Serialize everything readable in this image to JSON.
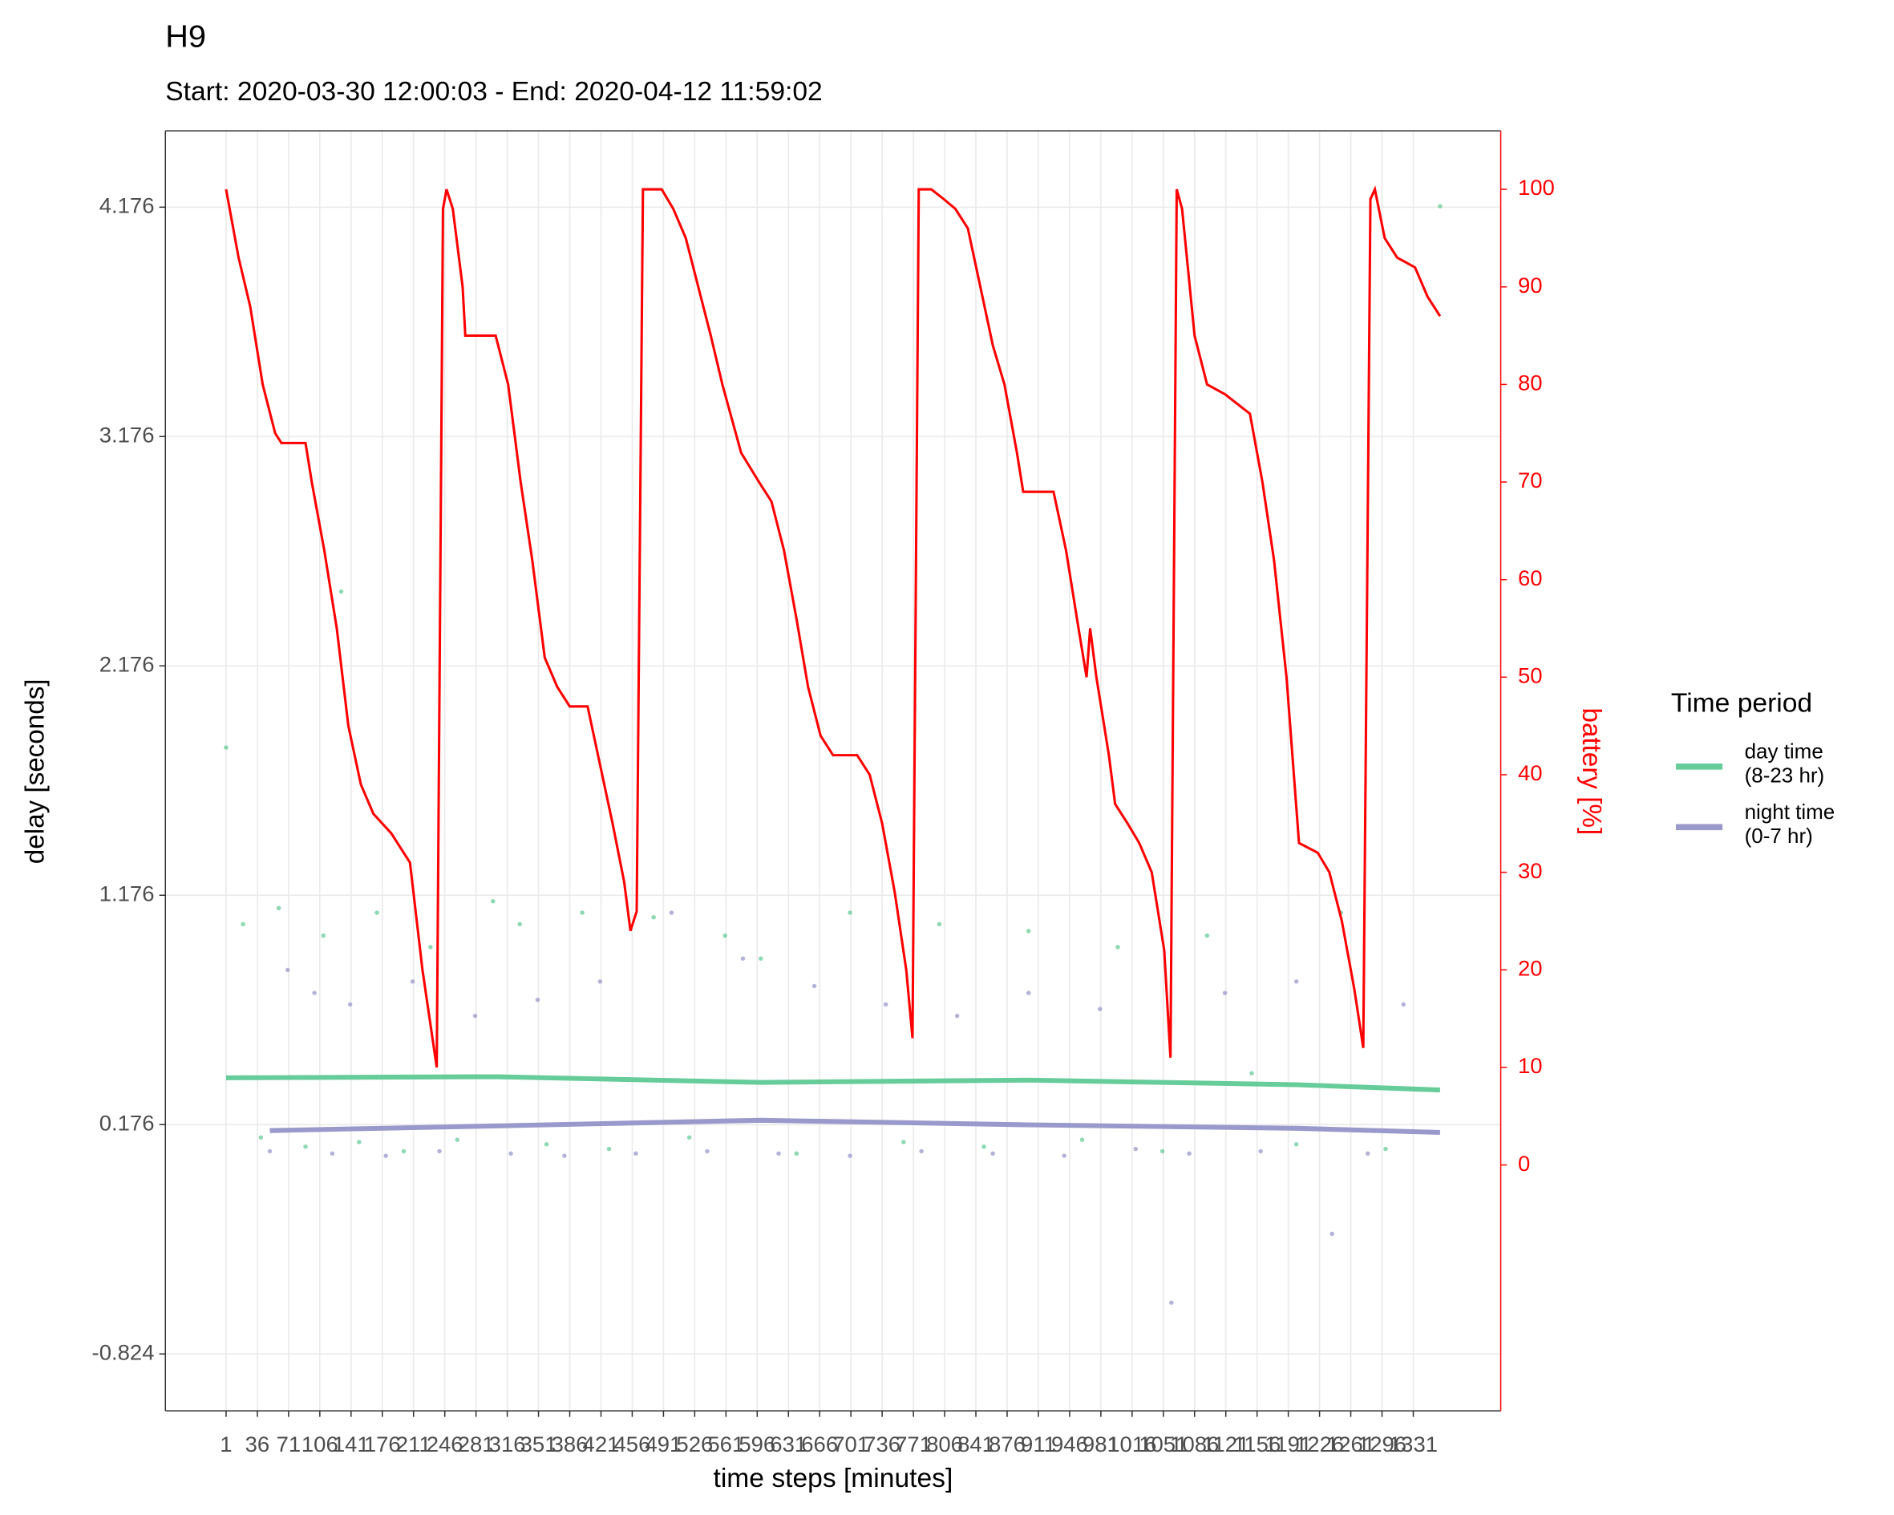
{
  "chart_data": {
    "type": "combo",
    "title": "H9",
    "subtitle": "Start: 2020-03-30 12:00:03 - End: 2020-04-12 11:59:02",
    "x_label": "time steps [minutes]",
    "y_label": "delay [seconds]",
    "y2_label": "battery [%]",
    "legend_title": "Time period",
    "legend_position": "right",
    "grid": true,
    "xlim": [
      -67,
      1429
    ],
    "ylim": [
      -1.072,
      4.509
    ],
    "y2lim": [
      -25.2,
      106
    ],
    "xticks": [
      1,
      36,
      71,
      106,
      141,
      176,
      211,
      246,
      281,
      316,
      351,
      386,
      421,
      456,
      491,
      526,
      561,
      596,
      631,
      666,
      701,
      736,
      771,
      806,
      841,
      876,
      911,
      946,
      981,
      1016,
      1051,
      1086,
      1121,
      1156,
      1191,
      1226,
      1261,
      1296,
      1331
    ],
    "yticks": [
      -0.824,
      0.176,
      1.176,
      2.176,
      3.176,
      4.176
    ],
    "y2ticks": [
      0,
      10,
      20,
      30,
      40,
      50,
      60,
      70,
      80,
      90,
      100
    ],
    "series": [
      {
        "name": "day time\n(8-23 hr)",
        "color": "#66cc99",
        "x": [
          1,
          20,
          40,
          60,
          90,
          110,
          130,
          150,
          170,
          200,
          230,
          260,
          300,
          330,
          360,
          400,
          430,
          480,
          520,
          560,
          600,
          640,
          700,
          760,
          800,
          850,
          900,
          960,
          1000,
          1050,
          1100,
          1150,
          1200,
          1250,
          1300,
          1361
        ],
        "values": [
          1.82,
          1.05,
          0.12,
          1.12,
          0.08,
          1.0,
          2.5,
          0.1,
          1.1,
          0.06,
          0.95,
          0.11,
          1.15,
          1.05,
          0.09,
          1.1,
          0.07,
          1.08,
          0.12,
          1.0,
          0.9,
          0.05,
          1.1,
          0.1,
          1.05,
          0.08,
          1.02,
          0.11,
          0.95,
          0.06,
          1.0,
          0.4,
          0.09,
          1.1,
          0.07,
          4.18
        ],
        "smooth_x": [
          1,
          300,
          600,
          900,
          1200,
          1361
        ],
        "smooth_values": [
          0.38,
          0.385,
          0.36,
          0.37,
          0.35,
          0.327
        ]
      },
      {
        "name": "night time\n(0-7 hr)",
        "color": "#9999cc",
        "x": [
          50,
          70,
          100,
          120,
          140,
          180,
          210,
          240,
          280,
          320,
          350,
          380,
          420,
          460,
          500,
          540,
          580,
          620,
          660,
          700,
          740,
          780,
          820,
          860,
          900,
          940,
          980,
          1020,
          1060,
          1080,
          1120,
          1160,
          1200,
          1240,
          1280,
          1320
        ],
        "values": [
          0.06,
          0.85,
          0.75,
          0.05,
          0.7,
          0.04,
          0.8,
          0.06,
          0.65,
          0.05,
          0.72,
          0.04,
          0.8,
          0.05,
          1.1,
          0.06,
          0.9,
          0.05,
          0.78,
          0.04,
          0.7,
          0.06,
          0.65,
          0.05,
          0.75,
          0.04,
          0.68,
          0.07,
          -0.6,
          0.05,
          0.75,
          0.06,
          0.8,
          -0.3,
          0.05,
          0.7
        ],
        "smooth_x": [
          50,
          300,
          600,
          900,
          1200,
          1361
        ],
        "smooth_values": [
          0.15,
          0.17,
          0.195,
          0.175,
          0.16,
          0.142
        ]
      }
    ],
    "battery": {
      "color": "#ff0000",
      "axis": "y2",
      "x": [
        1,
        15,
        28,
        42,
        56,
        63,
        90,
        97,
        111,
        125,
        138,
        152,
        166,
        186,
        207,
        221,
        237,
        244,
        248,
        255,
        266,
        269,
        303,
        317,
        331,
        344,
        358,
        372,
        386,
        406,
        420,
        434,
        447,
        454,
        461,
        468,
        489,
        502,
        516,
        530,
        544,
        557,
        578,
        598,
        612,
        626,
        640,
        653,
        667,
        681,
        708,
        722,
        736,
        750,
        763,
        770,
        777,
        791,
        805,
        818,
        832,
        846,
        860,
        873,
        887,
        894,
        928,
        942,
        956,
        965,
        969,
        976,
        990,
        997,
        1011,
        1024,
        1038,
        1052,
        1059,
        1066,
        1072,
        1086,
        1100,
        1120,
        1148,
        1162,
        1175,
        1189,
        1203,
        1224,
        1237,
        1251,
        1265,
        1275,
        1283,
        1288,
        1299,
        1313,
        1333,
        1347,
        1361
      ],
      "values": [
        100,
        93,
        88,
        80,
        75,
        74,
        74,
        70,
        63,
        55,
        45,
        39,
        36,
        34,
        31,
        20,
        10,
        98,
        100,
        98,
        90,
        85,
        85,
        80,
        70,
        62,
        52,
        49,
        47,
        47,
        41,
        35,
        29,
        24,
        26,
        100,
        100,
        98,
        95,
        90,
        85,
        80,
        73,
        70,
        68,
        63,
        56,
        49,
        44,
        42,
        42,
        40,
        35,
        28,
        20,
        13,
        100,
        100,
        99,
        98,
        96,
        90,
        84,
        80,
        73,
        69,
        69,
        63,
        55,
        50,
        55,
        50,
        42,
        37,
        35,
        33,
        30,
        22,
        11,
        100,
        98,
        85,
        80,
        79,
        77,
        70,
        62,
        50,
        33,
        32,
        30,
        25,
        18,
        12,
        99,
        100,
        95,
        93,
        92,
        89,
        87
      ]
    }
  }
}
